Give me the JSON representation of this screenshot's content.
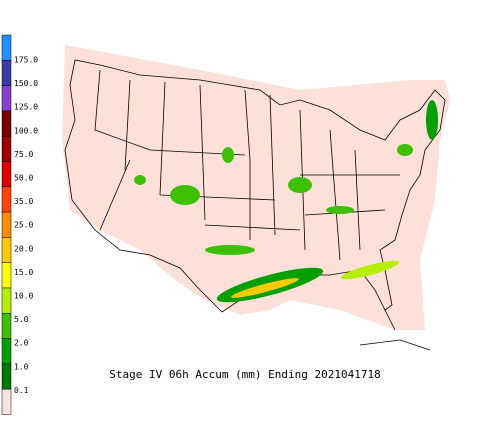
{
  "title": "Stage IV 06h Accum (mm) Ending 2021041718",
  "legend": {
    "levels": [
      {
        "label": "175.0",
        "color": "#1e90ff"
      },
      {
        "label": "150.0",
        "color": "#3a3aa8"
      },
      {
        "label": "125.0",
        "color": "#8a3fd0"
      },
      {
        "label": "100.0",
        "color": "#7a0000"
      },
      {
        "label": "75.0",
        "color": "#a00000"
      },
      {
        "label": "50.0",
        "color": "#e00000"
      },
      {
        "label": "35.0",
        "color": "#ff4500"
      },
      {
        "label": "25.0",
        "color": "#ff8c00"
      },
      {
        "label": "20.0",
        "color": "#ffc800"
      },
      {
        "label": "15.0",
        "color": "#ffff00"
      },
      {
        "label": "10.0",
        "color": "#b4ee00"
      },
      {
        "label": "5.0",
        "color": "#3cc000"
      },
      {
        "label": "2.0",
        "color": "#00a000"
      },
      {
        "label": "1.0",
        "color": "#007800"
      },
      {
        "label": "0.1",
        "color": "#ffe4e1"
      }
    ]
  }
}
